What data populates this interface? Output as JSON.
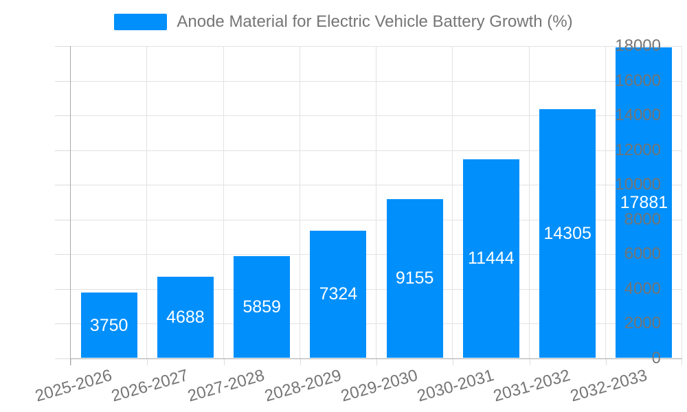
{
  "chart_data": {
    "type": "bar",
    "title": "Anode Material for Electric Vehicle Battery Growth (%)",
    "legend": {
      "position": "top",
      "entries": [
        "Anode Material for Electric Vehicle Battery Growth (%)"
      ]
    },
    "categories": [
      "2025-2026",
      "2026-2027",
      "2027-2028",
      "2028-2029",
      "2029-2030",
      "2030-2031",
      "2031-2032",
      "2032-2033"
    ],
    "series": [
      {
        "name": "Anode Material for Electric Vehicle Battery Growth (%)",
        "values": [
          3750,
          4688,
          5859,
          7324,
          9155,
          11444,
          14305,
          17881
        ]
      }
    ],
    "data_labels": [
      "3750",
      "4688",
      "5859",
      "7324",
      "9155",
      "11444",
      "14305",
      "17881"
    ],
    "xlabel": "",
    "ylabel": "",
    "ylim": [
      0,
      18000
    ],
    "ytick_step": 2000,
    "yticks": [
      0,
      2000,
      4000,
      6000,
      8000,
      10000,
      12000,
      14000,
      16000,
      18000
    ],
    "grid": true,
    "colors": {
      "bar": "#008FFB",
      "axis_text": "#757575",
      "grid_line": "#e2e2e2",
      "tick_line": "#dcdcdc",
      "axis_line": "#a8a8a8",
      "value_label": "#ffffff"
    }
  }
}
